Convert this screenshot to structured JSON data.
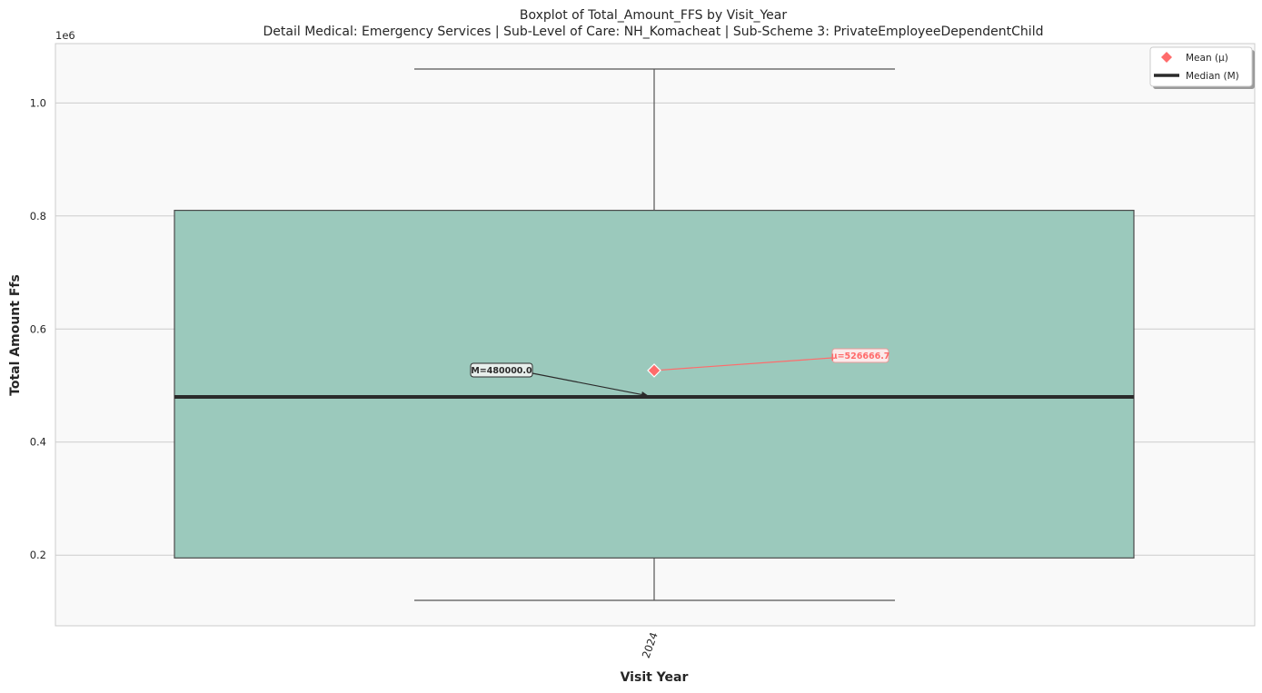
{
  "chart_data": {
    "type": "box",
    "title": "Boxplot of Total_Amount_FFS by Visit_Year",
    "subtitle": "Detail Medical: Emergency Services | Sub-Level of Care: NH_Komacheat | Sub-Scheme 3: PrivateEmployeeDependentChild",
    "xlabel": "Visit Year",
    "ylabel": "Total Amount Ffs",
    "y_multiplier_label": "1e6",
    "categories": [
      "2024"
    ],
    "boxes": [
      {
        "category": "2024",
        "whisker_low": 120000,
        "q1": 195000,
        "median": 480000,
        "q3": 810000,
        "whisker_high": 1060000,
        "mean": 526666.7
      }
    ],
    "ylim": [
      75000,
      1105000
    ],
    "yticks": [
      200000,
      400000,
      600000,
      800000,
      1000000
    ],
    "ytick_labels": [
      "0.2",
      "0.4",
      "0.6",
      "0.8",
      "1.0"
    ],
    "grid": true,
    "legend_position": "top-right",
    "legend": [
      {
        "label": "Mean (μ)",
        "marker": "diamond",
        "color": "#ff6b6b"
      },
      {
        "label": "Median (M)",
        "marker": "line",
        "color": "#2b2b2b"
      }
    ],
    "annotations": {
      "median_label": "M=480000.0",
      "mean_label": "μ=526666.7"
    },
    "colors": {
      "box_fill": "#9bc9bc",
      "box_edge": "#4a4a4a",
      "median": "#2b2b2b",
      "mean": "#ff6b6b",
      "whisker": "#555555",
      "grid": "#cccccc",
      "plot_bg": "#f9f9f9",
      "axes_edge": "#cccccc"
    }
  }
}
